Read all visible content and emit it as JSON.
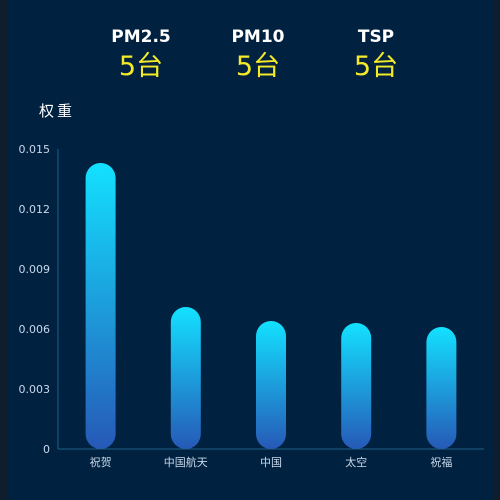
{
  "stats": [
    {
      "label": "PM2.5",
      "value": "5台"
    },
    {
      "label": "PM10",
      "value": "5台"
    },
    {
      "label": "TSP",
      "value": "5台"
    }
  ],
  "colors": {
    "background": "#00213f",
    "bar_top": "#13e1ff",
    "bar_bottom": "#2659b7",
    "stat_value": "#f4ea2a",
    "axis": "#1f5f8a"
  },
  "chart_data": {
    "type": "bar",
    "ylabel": "权重",
    "xlabel": "",
    "categories": [
      "祝贺",
      "中国航天",
      "中国",
      "太空",
      "祝福"
    ],
    "values": [
      0.0143,
      0.0071,
      0.0064,
      0.0063,
      0.0061
    ],
    "ylim": [
      0,
      0.015
    ],
    "yticks": [
      "0",
      "0.003",
      "0.006",
      "0.009",
      "0.012",
      "0.015"
    ],
    "grid": false,
    "legend": "none"
  }
}
